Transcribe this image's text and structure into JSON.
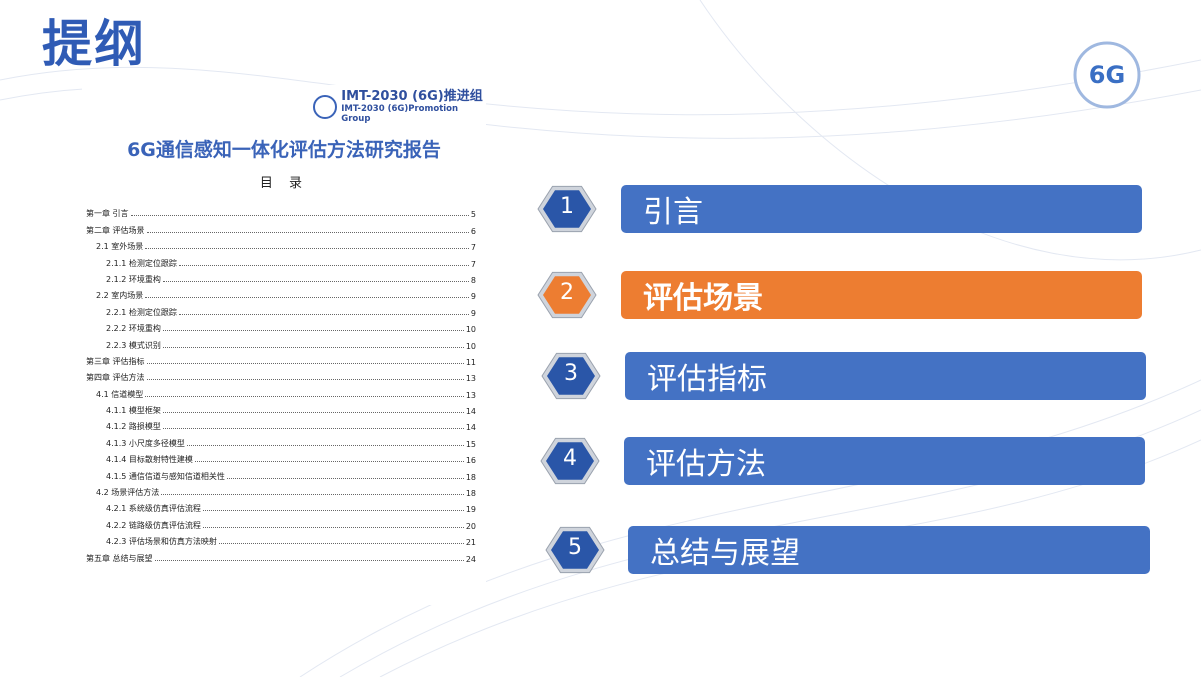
{
  "header": {
    "title": "提纲",
    "logo_text": "6G"
  },
  "document": {
    "logo_cn": "IMT-2030 (6G)推进组",
    "logo_en": "IMT-2030 (6G)Promotion Group",
    "title": "6G通信感知一体化评估方法研究报告",
    "toc_heading": "目 录",
    "toc": [
      {
        "label": "第一章  引言",
        "page": "5"
      },
      {
        "label": "第二章  评估场景",
        "page": "6"
      },
      {
        "label": "2.1 室外场景",
        "page": "7"
      },
      {
        "label": "2.1.1  检测定位跟踪",
        "page": "7"
      },
      {
        "label": "2.1.2  环境重构",
        "page": "8"
      },
      {
        "label": "2.2 室内场景",
        "page": "9"
      },
      {
        "label": "2.2.1  检测定位跟踪",
        "page": "9"
      },
      {
        "label": "2.2.2  环境重构",
        "page": "10"
      },
      {
        "label": "2.2.3  模式识别",
        "page": "10"
      },
      {
        "label": "第三章  评估指标",
        "page": "11"
      },
      {
        "label": "第四章  评估方法",
        "page": "13"
      },
      {
        "label": "4.1      信道模型",
        "page": "13"
      },
      {
        "label": "4.1.1  模型框架",
        "page": "14"
      },
      {
        "label": "4.1.2  路损模型",
        "page": "14"
      },
      {
        "label": "4.1.3  小尺度多径模型",
        "page": "15"
      },
      {
        "label": "4.1.4  目标散射特性建模",
        "page": "16"
      },
      {
        "label": "4.1.5  通信信道与感知信道相关性",
        "page": "18"
      },
      {
        "label": "4.2      场景评估方法",
        "page": "18"
      },
      {
        "label": "4.2.1  系统级仿真评估流程",
        "page": "19"
      },
      {
        "label": "4.2.2  链路级仿真评估流程",
        "page": "20"
      },
      {
        "label": "4.2.3  评估场景和仿真方法映射",
        "page": "21"
      },
      {
        "label": "第五章  总结与展望",
        "page": "24"
      }
    ]
  },
  "outline": [
    {
      "number": "1",
      "label": "引言"
    },
    {
      "number": "2",
      "label": "评估场景"
    },
    {
      "number": "3",
      "label": "评估指标"
    },
    {
      "number": "4",
      "label": "评估方法"
    },
    {
      "number": "5",
      "label": "总结与展望"
    }
  ]
}
